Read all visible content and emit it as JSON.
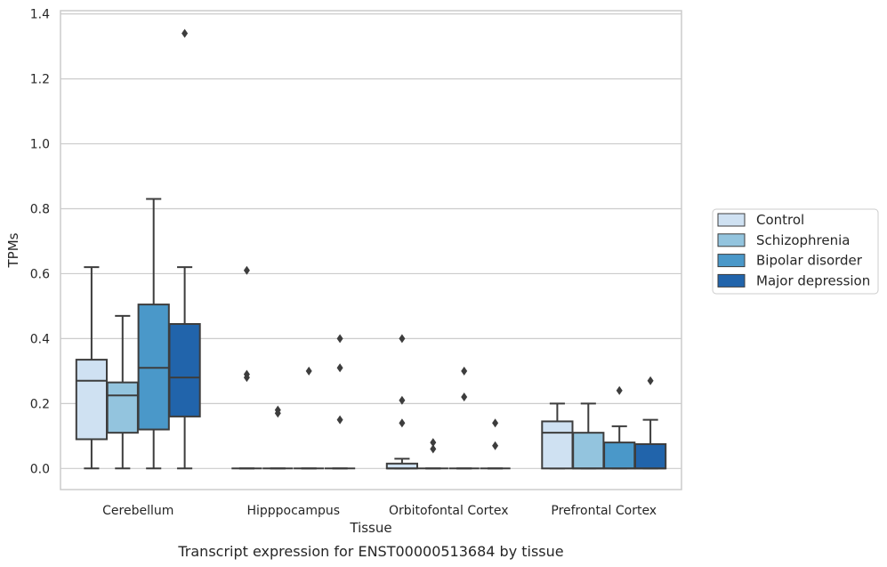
{
  "chart_data": {
    "type": "boxplot",
    "caption": "Transcript expression for ENST00000513684 by tissue",
    "xlabel": "Tissue",
    "ylabel": "TPMs",
    "ylim": [
      -0.065,
      1.41
    ],
    "yticks": [
      "0.0",
      "0.2",
      "0.4",
      "0.6",
      "0.8",
      "1.0",
      "1.2",
      "1.4"
    ],
    "grid": "horizontal",
    "legend_position": "right",
    "categories": [
      "Cerebellum",
      "Hipppocampus",
      "Orbitofontal Cortex",
      "Prefrontal Cortex"
    ],
    "series": [
      {
        "name": "Control",
        "color": "#cfe1f2",
        "boxes": [
          {
            "whislo": 0.0,
            "q1": 0.09,
            "med": 0.27,
            "q3": 0.335,
            "whishi": 0.62,
            "fliers": []
          },
          {
            "whislo": 0.0,
            "q1": 0.0,
            "med": 0.0,
            "q3": 0.0,
            "whishi": 0.0,
            "fliers": [
              0.61,
              0.29,
              0.28
            ]
          },
          {
            "whislo": 0.0,
            "q1": 0.0,
            "med": 0.0,
            "q3": 0.015,
            "whishi": 0.03,
            "fliers": [
              0.4,
              0.21,
              0.14
            ]
          },
          {
            "whislo": 0.0,
            "q1": 0.0,
            "med": 0.11,
            "q3": 0.145,
            "whishi": 0.2,
            "fliers": []
          }
        ]
      },
      {
        "name": "Schizophrenia",
        "color": "#93c4de",
        "boxes": [
          {
            "whislo": 0.0,
            "q1": 0.11,
            "med": 0.225,
            "q3": 0.265,
            "whishi": 0.47,
            "fliers": []
          },
          {
            "whislo": 0.0,
            "q1": 0.0,
            "med": 0.0,
            "q3": 0.0,
            "whishi": 0.0,
            "fliers": [
              0.18,
              0.17
            ]
          },
          {
            "whislo": 0.0,
            "q1": 0.0,
            "med": 0.0,
            "q3": 0.0,
            "whishi": 0.0,
            "fliers": [
              0.08,
              0.06
            ]
          },
          {
            "whislo": 0.0,
            "q1": 0.0,
            "med": 0.0,
            "q3": 0.11,
            "whishi": 0.2,
            "fliers": []
          }
        ]
      },
      {
        "name": "Bipolar disorder",
        "color": "#4a98c9",
        "boxes": [
          {
            "whislo": 0.0,
            "q1": 0.12,
            "med": 0.31,
            "q3": 0.505,
            "whishi": 0.83,
            "fliers": []
          },
          {
            "whislo": 0.0,
            "q1": 0.0,
            "med": 0.0,
            "q3": 0.0,
            "whishi": 0.0,
            "fliers": [
              0.3
            ]
          },
          {
            "whislo": 0.0,
            "q1": 0.0,
            "med": 0.0,
            "q3": 0.0,
            "whishi": 0.0,
            "fliers": [
              0.3,
              0.22
            ]
          },
          {
            "whislo": 0.0,
            "q1": 0.0,
            "med": 0.0,
            "q3": 0.08,
            "whishi": 0.13,
            "fliers": [
              0.24
            ]
          }
        ]
      },
      {
        "name": "Major depression",
        "color": "#2164ab",
        "boxes": [
          {
            "whislo": 0.0,
            "q1": 0.16,
            "med": 0.28,
            "q3": 0.445,
            "whishi": 0.62,
            "fliers": [
              1.34
            ]
          },
          {
            "whislo": 0.0,
            "q1": 0.0,
            "med": 0.0,
            "q3": 0.0,
            "whishi": 0.0,
            "fliers": [
              0.4,
              0.31,
              0.15
            ]
          },
          {
            "whislo": 0.0,
            "q1": 0.0,
            "med": 0.0,
            "q3": 0.0,
            "whishi": 0.0,
            "fliers": [
              0.14,
              0.07
            ]
          },
          {
            "whislo": 0.0,
            "q1": 0.0,
            "med": 0.0,
            "q3": 0.075,
            "whishi": 0.15,
            "fliers": [
              0.27
            ]
          }
        ]
      }
    ]
  }
}
